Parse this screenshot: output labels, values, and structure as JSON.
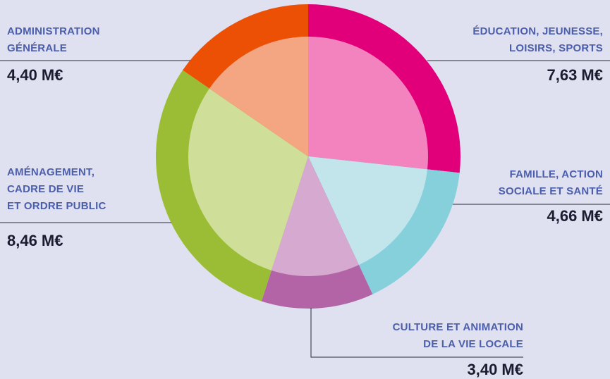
{
  "chart_data": {
    "type": "pie",
    "categories": [
      "ÉDUCATION, JEUNESSE,\nLOISIRS, SPORTS",
      "FAMILLE, ACTION\nSOCIALE ET SANTÉ",
      "CULTURE ET ANIMATION\nDE LA VIE LOCALE",
      "AMÉNAGEMENT,\nCADRE DE VIE\nET ORDRE PUBLIC",
      "ADMINISTRATION\nGÉNÉRALE"
    ],
    "values": [
      7.63,
      4.66,
      3.4,
      8.46,
      4.4
    ],
    "value_labels": [
      "7,63 M€",
      "4,66 M€",
      "3,40 M€",
      "8,46 M€",
      "4,40 M€"
    ],
    "colors": [
      "#e2007a",
      "#86d0dc",
      "#b264a6",
      "#9bbd35",
      "#eb5005"
    ],
    "inner_colors": [
      "#f283bf",
      "#c2e5ec",
      "#d6a9d0",
      "#cfdf9a",
      "#f4a582"
    ]
  }
}
